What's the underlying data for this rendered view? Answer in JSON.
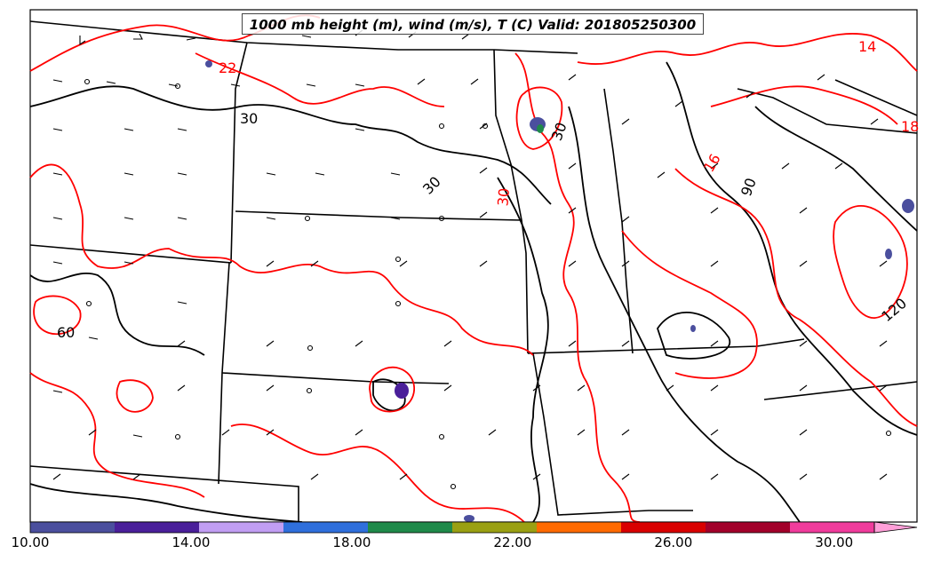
{
  "title": "1000 mb height (m), wind (m/s), T (C) Valid: 201805250300",
  "colorbar": {
    "ticks": [
      "10.00",
      "14.00",
      "18.00",
      "22.00",
      "26.00",
      "30.00"
    ],
    "min": 10,
    "max": 31,
    "colors": [
      "#4b4f9e",
      "#4a1f9a",
      "#c19ef3",
      "#2f6fdc",
      "#1f8a4a",
      "#9aa013",
      "#ff6a00",
      "#d90000",
      "#a2002a",
      "#f03c9c",
      "#ff9fd8"
    ],
    "extend": "max"
  },
  "contour_labels": [
    {
      "name": "temp-label-30a",
      "text": "30"
    },
    {
      "name": "temp-label-30b",
      "text": "30"
    },
    {
      "name": "temp-label-30c",
      "text": "30"
    },
    {
      "name": "temp-label-30d",
      "text": "30"
    },
    {
      "name": "temp-label-60",
      "text": "60"
    },
    {
      "name": "temp-label-90",
      "text": "90"
    },
    {
      "name": "temp-label-120",
      "text": "120"
    },
    {
      "name": "temp-label-14",
      "text": "14"
    },
    {
      "name": "temp-label-16",
      "text": "16"
    },
    {
      "name": "temp-label-18",
      "text": "18"
    },
    {
      "name": "temp-label-22",
      "text": "22"
    }
  ],
  "colors": {
    "temperature_contour": "#ff0000",
    "height_contour": "#000000",
    "state_border": "#000000"
  }
}
